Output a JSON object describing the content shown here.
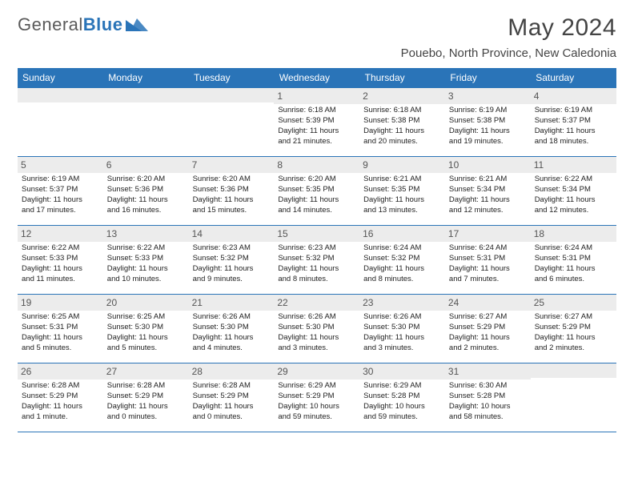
{
  "logo": {
    "text1": "General",
    "text2": "Blue"
  },
  "title": "May 2024",
  "location": "Pouebo, North Province, New Caledonia",
  "colors": {
    "accent": "#2a74b8",
    "grayBg": "#ececec",
    "text": "#222222"
  },
  "dayHeaders": [
    "Sunday",
    "Monday",
    "Tuesday",
    "Wednesday",
    "Thursday",
    "Friday",
    "Saturday"
  ],
  "weeks": [
    [
      {
        "num": "",
        "sunrise": "",
        "sunset": "",
        "daylight1": "",
        "daylight2": ""
      },
      {
        "num": "",
        "sunrise": "",
        "sunset": "",
        "daylight1": "",
        "daylight2": ""
      },
      {
        "num": "",
        "sunrise": "",
        "sunset": "",
        "daylight1": "",
        "daylight2": ""
      },
      {
        "num": "1",
        "sunrise": "Sunrise: 6:18 AM",
        "sunset": "Sunset: 5:39 PM",
        "daylight1": "Daylight: 11 hours",
        "daylight2": "and 21 minutes."
      },
      {
        "num": "2",
        "sunrise": "Sunrise: 6:18 AM",
        "sunset": "Sunset: 5:38 PM",
        "daylight1": "Daylight: 11 hours",
        "daylight2": "and 20 minutes."
      },
      {
        "num": "3",
        "sunrise": "Sunrise: 6:19 AM",
        "sunset": "Sunset: 5:38 PM",
        "daylight1": "Daylight: 11 hours",
        "daylight2": "and 19 minutes."
      },
      {
        "num": "4",
        "sunrise": "Sunrise: 6:19 AM",
        "sunset": "Sunset: 5:37 PM",
        "daylight1": "Daylight: 11 hours",
        "daylight2": "and 18 minutes."
      }
    ],
    [
      {
        "num": "5",
        "sunrise": "Sunrise: 6:19 AM",
        "sunset": "Sunset: 5:37 PM",
        "daylight1": "Daylight: 11 hours",
        "daylight2": "and 17 minutes."
      },
      {
        "num": "6",
        "sunrise": "Sunrise: 6:20 AM",
        "sunset": "Sunset: 5:36 PM",
        "daylight1": "Daylight: 11 hours",
        "daylight2": "and 16 minutes."
      },
      {
        "num": "7",
        "sunrise": "Sunrise: 6:20 AM",
        "sunset": "Sunset: 5:36 PM",
        "daylight1": "Daylight: 11 hours",
        "daylight2": "and 15 minutes."
      },
      {
        "num": "8",
        "sunrise": "Sunrise: 6:20 AM",
        "sunset": "Sunset: 5:35 PM",
        "daylight1": "Daylight: 11 hours",
        "daylight2": "and 14 minutes."
      },
      {
        "num": "9",
        "sunrise": "Sunrise: 6:21 AM",
        "sunset": "Sunset: 5:35 PM",
        "daylight1": "Daylight: 11 hours",
        "daylight2": "and 13 minutes."
      },
      {
        "num": "10",
        "sunrise": "Sunrise: 6:21 AM",
        "sunset": "Sunset: 5:34 PM",
        "daylight1": "Daylight: 11 hours",
        "daylight2": "and 12 minutes."
      },
      {
        "num": "11",
        "sunrise": "Sunrise: 6:22 AM",
        "sunset": "Sunset: 5:34 PM",
        "daylight1": "Daylight: 11 hours",
        "daylight2": "and 12 minutes."
      }
    ],
    [
      {
        "num": "12",
        "sunrise": "Sunrise: 6:22 AM",
        "sunset": "Sunset: 5:33 PM",
        "daylight1": "Daylight: 11 hours",
        "daylight2": "and 11 minutes."
      },
      {
        "num": "13",
        "sunrise": "Sunrise: 6:22 AM",
        "sunset": "Sunset: 5:33 PM",
        "daylight1": "Daylight: 11 hours",
        "daylight2": "and 10 minutes."
      },
      {
        "num": "14",
        "sunrise": "Sunrise: 6:23 AM",
        "sunset": "Sunset: 5:32 PM",
        "daylight1": "Daylight: 11 hours",
        "daylight2": "and 9 minutes."
      },
      {
        "num": "15",
        "sunrise": "Sunrise: 6:23 AM",
        "sunset": "Sunset: 5:32 PM",
        "daylight1": "Daylight: 11 hours",
        "daylight2": "and 8 minutes."
      },
      {
        "num": "16",
        "sunrise": "Sunrise: 6:24 AM",
        "sunset": "Sunset: 5:32 PM",
        "daylight1": "Daylight: 11 hours",
        "daylight2": "and 8 minutes."
      },
      {
        "num": "17",
        "sunrise": "Sunrise: 6:24 AM",
        "sunset": "Sunset: 5:31 PM",
        "daylight1": "Daylight: 11 hours",
        "daylight2": "and 7 minutes."
      },
      {
        "num": "18",
        "sunrise": "Sunrise: 6:24 AM",
        "sunset": "Sunset: 5:31 PM",
        "daylight1": "Daylight: 11 hours",
        "daylight2": "and 6 minutes."
      }
    ],
    [
      {
        "num": "19",
        "sunrise": "Sunrise: 6:25 AM",
        "sunset": "Sunset: 5:31 PM",
        "daylight1": "Daylight: 11 hours",
        "daylight2": "and 5 minutes."
      },
      {
        "num": "20",
        "sunrise": "Sunrise: 6:25 AM",
        "sunset": "Sunset: 5:30 PM",
        "daylight1": "Daylight: 11 hours",
        "daylight2": "and 5 minutes."
      },
      {
        "num": "21",
        "sunrise": "Sunrise: 6:26 AM",
        "sunset": "Sunset: 5:30 PM",
        "daylight1": "Daylight: 11 hours",
        "daylight2": "and 4 minutes."
      },
      {
        "num": "22",
        "sunrise": "Sunrise: 6:26 AM",
        "sunset": "Sunset: 5:30 PM",
        "daylight1": "Daylight: 11 hours",
        "daylight2": "and 3 minutes."
      },
      {
        "num": "23",
        "sunrise": "Sunrise: 6:26 AM",
        "sunset": "Sunset: 5:30 PM",
        "daylight1": "Daylight: 11 hours",
        "daylight2": "and 3 minutes."
      },
      {
        "num": "24",
        "sunrise": "Sunrise: 6:27 AM",
        "sunset": "Sunset: 5:29 PM",
        "daylight1": "Daylight: 11 hours",
        "daylight2": "and 2 minutes."
      },
      {
        "num": "25",
        "sunrise": "Sunrise: 6:27 AM",
        "sunset": "Sunset: 5:29 PM",
        "daylight1": "Daylight: 11 hours",
        "daylight2": "and 2 minutes."
      }
    ],
    [
      {
        "num": "26",
        "sunrise": "Sunrise: 6:28 AM",
        "sunset": "Sunset: 5:29 PM",
        "daylight1": "Daylight: 11 hours",
        "daylight2": "and 1 minute."
      },
      {
        "num": "27",
        "sunrise": "Sunrise: 6:28 AM",
        "sunset": "Sunset: 5:29 PM",
        "daylight1": "Daylight: 11 hours",
        "daylight2": "and 0 minutes."
      },
      {
        "num": "28",
        "sunrise": "Sunrise: 6:28 AM",
        "sunset": "Sunset: 5:29 PM",
        "daylight1": "Daylight: 11 hours",
        "daylight2": "and 0 minutes."
      },
      {
        "num": "29",
        "sunrise": "Sunrise: 6:29 AM",
        "sunset": "Sunset: 5:29 PM",
        "daylight1": "Daylight: 10 hours",
        "daylight2": "and 59 minutes."
      },
      {
        "num": "30",
        "sunrise": "Sunrise: 6:29 AM",
        "sunset": "Sunset: 5:28 PM",
        "daylight1": "Daylight: 10 hours",
        "daylight2": "and 59 minutes."
      },
      {
        "num": "31",
        "sunrise": "Sunrise: 6:30 AM",
        "sunset": "Sunset: 5:28 PM",
        "daylight1": "Daylight: 10 hours",
        "daylight2": "and 58 minutes."
      },
      {
        "num": "",
        "sunrise": "",
        "sunset": "",
        "daylight1": "",
        "daylight2": ""
      }
    ]
  ]
}
